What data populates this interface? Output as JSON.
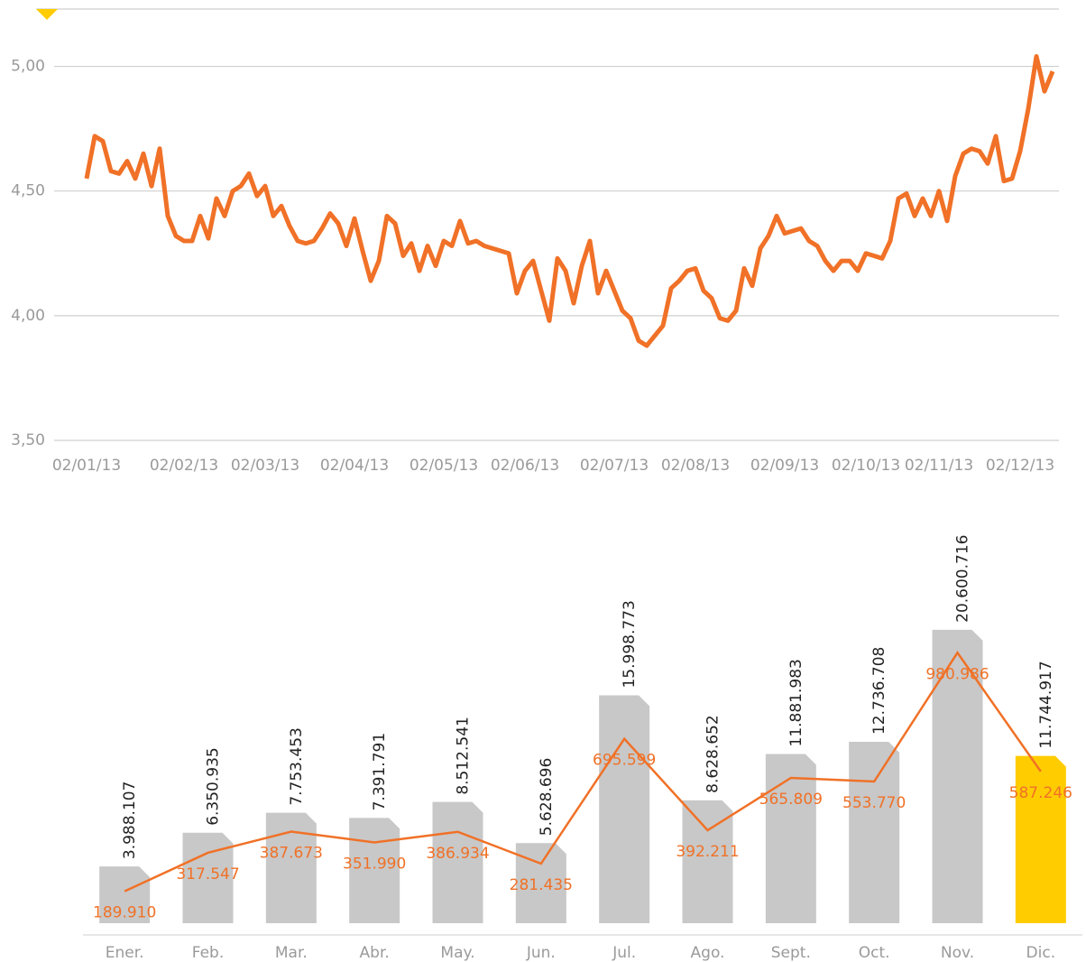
{
  "chart_data": [
    {
      "type": "line",
      "categories": [
        "02/01/13",
        null,
        null,
        null,
        null,
        null,
        null,
        null,
        null,
        null,
        null,
        null,
        "02/02/13",
        null,
        null,
        null,
        null,
        null,
        null,
        null,
        null,
        null,
        "02/03/13",
        null,
        null,
        null,
        null,
        null,
        null,
        null,
        null,
        null,
        null,
        "02/04/13",
        null,
        null,
        null,
        null,
        null,
        null,
        null,
        null,
        null,
        null,
        "02/05/13",
        null,
        null,
        null,
        null,
        null,
        null,
        null,
        null,
        null,
        "02/06/13",
        null,
        null,
        null,
        null,
        null,
        null,
        null,
        null,
        null,
        null,
        "02/07/13",
        null,
        null,
        null,
        null,
        null,
        null,
        null,
        null,
        null,
        "02/08/13",
        null,
        null,
        null,
        null,
        null,
        null,
        null,
        null,
        null,
        null,
        "02/09/13",
        null,
        null,
        null,
        null,
        null,
        null,
        null,
        null,
        null,
        "02/10/13",
        null,
        null,
        null,
        null,
        null,
        null,
        null,
        null,
        "02/11/13",
        null,
        null,
        null,
        null,
        null,
        null,
        null,
        null,
        null,
        "02/12/13",
        null,
        null,
        null,
        null
      ],
      "series": [
        {
          "color": "#f07127",
          "values": [
            4.55,
            4.72,
            4.7,
            4.58,
            4.57,
            4.62,
            4.55,
            4.65,
            4.52,
            4.67,
            4.4,
            4.32,
            4.3,
            4.3,
            4.4,
            4.31,
            4.47,
            4.4,
            4.5,
            4.52,
            4.57,
            4.48,
            4.52,
            4.4,
            4.44,
            4.36,
            4.3,
            4.29,
            4.3,
            4.35,
            4.41,
            4.37,
            4.28,
            4.39,
            4.26,
            4.14,
            4.22,
            4.4,
            4.37,
            4.24,
            4.29,
            4.18,
            4.28,
            4.2,
            4.3,
            4.28,
            4.38,
            4.29,
            4.3,
            4.28,
            4.27,
            4.26,
            4.25,
            4.09,
            4.18,
            4.22,
            4.1,
            3.98,
            4.23,
            4.18,
            4.05,
            4.2,
            4.3,
            4.09,
            4.18,
            4.1,
            4.02,
            3.99,
            3.9,
            3.88,
            3.92,
            3.96,
            4.11,
            4.14,
            4.18,
            4.19,
            4.1,
            4.07,
            3.99,
            3.98,
            4.02,
            4.19,
            4.12,
            4.27,
            4.32,
            4.4,
            4.33,
            4.34,
            4.35,
            4.3,
            4.28,
            4.22,
            4.18,
            4.22,
            4.22,
            4.18,
            4.25,
            4.24,
            4.23,
            4.3,
            4.47,
            4.49,
            4.4,
            4.47,
            4.4,
            4.5,
            4.38,
            4.56,
            4.65,
            4.67,
            4.66,
            4.61,
            4.72,
            4.54,
            4.55,
            4.66,
            4.83,
            5.04,
            4.9,
            4.98
          ]
        }
      ],
      "ylim": [
        3.5,
        5.23
      ],
      "yticks": [
        {
          "value": 3.5,
          "label": "3,50"
        },
        {
          "value": 4.0,
          "label": "4,00"
        },
        {
          "value": 4.5,
          "label": "4,50"
        },
        {
          "value": 5.0,
          "label": "5,00"
        }
      ],
      "grid": true
    },
    {
      "type": "bar",
      "categories": [
        "Ener.",
        "Feb.",
        "Mar.",
        "Abr.",
        "May.",
        "Jun.",
        "Jul.",
        "Ago.",
        "Sept.",
        "Oct.",
        "Nov.",
        "Dic."
      ],
      "series": [
        {
          "type": "bar",
          "colors": [
            "#c8c8c8",
            "#c8c8c8",
            "#c8c8c8",
            "#c8c8c8",
            "#c8c8c8",
            "#c8c8c8",
            "#c8c8c8",
            "#c8c8c8",
            "#c8c8c8",
            "#c8c8c8",
            "#c8c8c8",
            "#ffcc00"
          ],
          "values": [
            3988107,
            6350935,
            7753453,
            7391791,
            8512541,
            5628696,
            15998773,
            8628652,
            11881983,
            12736708,
            20600716,
            11744917
          ],
          "value_labels": [
            "3.988.107",
            "6.350.935",
            "7.753.453",
            "7.391.791",
            "8.512.541",
            "5.628.696",
            "15.998.773",
            "8.628.652",
            "11.881.983",
            "12.736.708",
            "20.600.716",
            "11.744.917"
          ]
        },
        {
          "type": "line",
          "axis": "y2",
          "color": "#f07127",
          "values": [
            189910,
            317547,
            387673,
            351990,
            386934,
            281435,
            695599,
            392211,
            565809,
            553770,
            980986,
            587246
          ],
          "value_labels": [
            "189.910",
            "317.547",
            "387.673",
            "351.990",
            "386.934",
            "281.435",
            "695.599",
            "392.211",
            "565.809",
            "553.770",
            "980.986",
            "587.246"
          ]
        }
      ],
      "ylim": [
        -820000,
        26800000
      ],
      "y2lim": [
        45000,
        1350000
      ]
    }
  ]
}
